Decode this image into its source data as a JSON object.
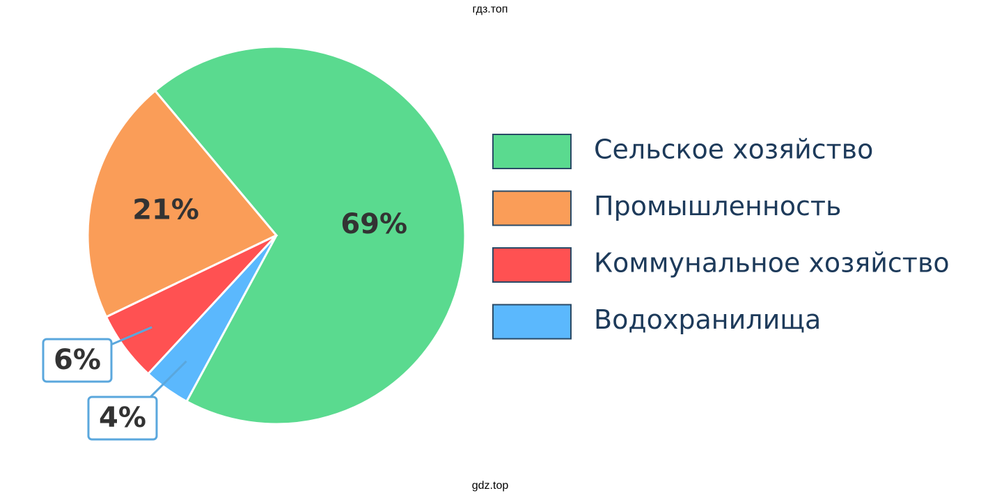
{
  "watermarks": [
    "гдз.топ",
    "gdz.top"
  ],
  "chart_data": {
    "type": "pie",
    "categories": [
      "Сельское хозяйство",
      "Промышленность",
      "Коммунальное хозяйство",
      "Водохранилища"
    ],
    "values": [
      69,
      21,
      6,
      4
    ],
    "value_labels": [
      "69%",
      "21%",
      "6%",
      "4%"
    ],
    "colors": [
      "#5ada8f",
      "#fa9d58",
      "#ff5152",
      "#5bb8fd"
    ],
    "legend": "right"
  }
}
